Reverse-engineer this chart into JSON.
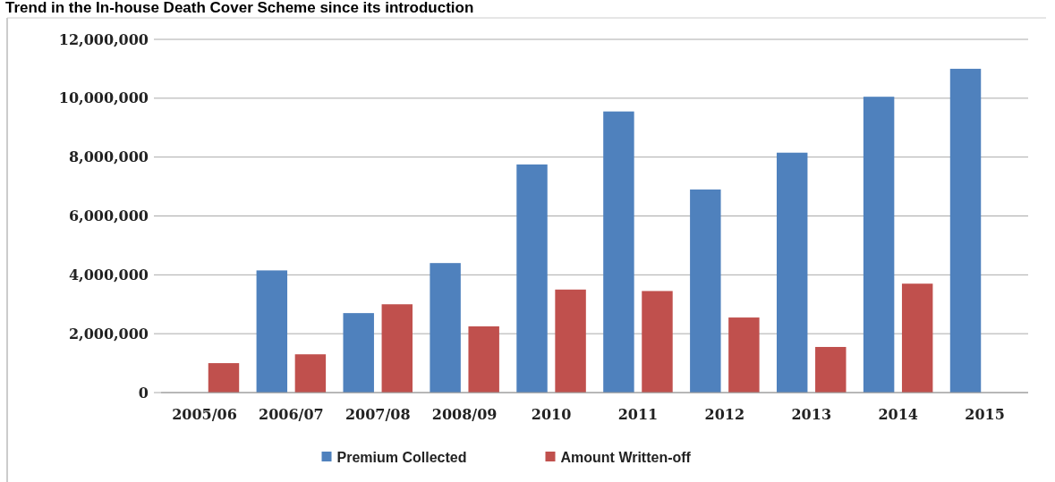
{
  "chart_data": {
    "type": "bar",
    "title": "Trend in the In-house Death Cover Scheme since its introduction",
    "categories": [
      "2005/06",
      "2006/07",
      "2007/08",
      "2008/09",
      "2010",
      "2011",
      "2012",
      "2013",
      "2014",
      "2015"
    ],
    "series": [
      {
        "name": "Premium Collected",
        "color": "#4f81bd",
        "values": [
          null,
          4150000,
          2700000,
          4400000,
          7750000,
          9550000,
          6900000,
          8150000,
          10050000,
          11000000
        ]
      },
      {
        "name": "Amount Written-off",
        "color": "#c0504d",
        "values": [
          1000000,
          1300000,
          3000000,
          2250000,
          3500000,
          3450000,
          2550000,
          1550000,
          3700000,
          null
        ]
      }
    ],
    "ylim": [
      0,
      12000000
    ],
    "yticks": [
      {
        "value": 0,
        "label": "0"
      },
      {
        "value": 2000000,
        "label": "2,000,000"
      },
      {
        "value": 4000000,
        "label": "4,000,000"
      },
      {
        "value": 6000000,
        "label": "6,000,000"
      },
      {
        "value": 8000000,
        "label": "8,000,000"
      },
      {
        "value": 10000000,
        "label": "10,000,000"
      },
      {
        "value": 12000000,
        "label": "12,000,000"
      }
    ],
    "grid": "y",
    "legend": "bottom"
  }
}
